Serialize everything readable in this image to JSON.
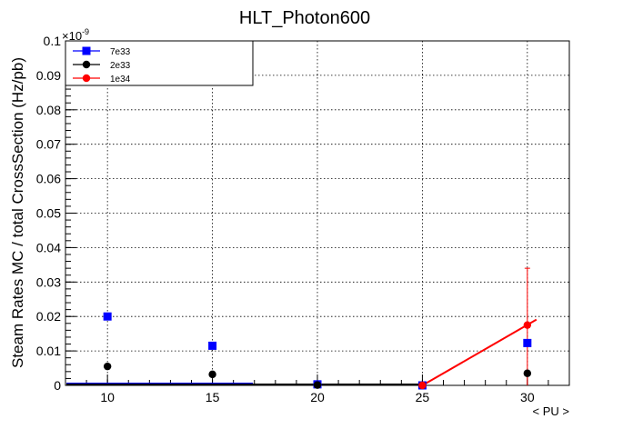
{
  "chart_data": {
    "type": "scatter",
    "title": "HLT_Photon600",
    "xlabel": "< PU >",
    "ylabel": "Steam Rates MC / total CrossSection (Hz/pb)",
    "y_multiplier": "×10",
    "y_multiplier_exp": "-9",
    "xlim": [
      8,
      32
    ],
    "ylim": [
      0,
      0.1
    ],
    "x_ticks": [
      10,
      15,
      20,
      25,
      30
    ],
    "x_tick_labels": [
      "10",
      "15",
      "20",
      "25",
      "30"
    ],
    "y_ticks": [
      0,
      0.01,
      0.02,
      0.03,
      0.04,
      0.05,
      0.06,
      0.07,
      0.08,
      0.09,
      0.1
    ],
    "y_tick_labels": [
      "0",
      "0.01",
      "0.02",
      "0.03",
      "0.04",
      "0.05",
      "0.06",
      "0.07",
      "0.08",
      "0.09",
      "0.1"
    ],
    "grid": true,
    "legend_position": "top-left",
    "series": [
      {
        "name": "7e33",
        "color": "#0000ff",
        "marker": "square",
        "x": [
          10,
          15,
          20,
          25,
          30
        ],
        "y": [
          0.02,
          0.0115,
          0.0003,
          0,
          0.0123
        ]
      },
      {
        "name": "2e33",
        "color": "#000000",
        "marker": "circle",
        "x": [
          10,
          15,
          20,
          25,
          30
        ],
        "y": [
          0.0055,
          0.0032,
          0.0001,
          0,
          0.0035
        ]
      },
      {
        "name": "1e34",
        "color": "#ff0000",
        "marker": "circle",
        "x": [
          25,
          30
        ],
        "y": [
          0,
          0.0175
        ],
        "y_err": [
          0,
          0.0165
        ]
      }
    ]
  }
}
